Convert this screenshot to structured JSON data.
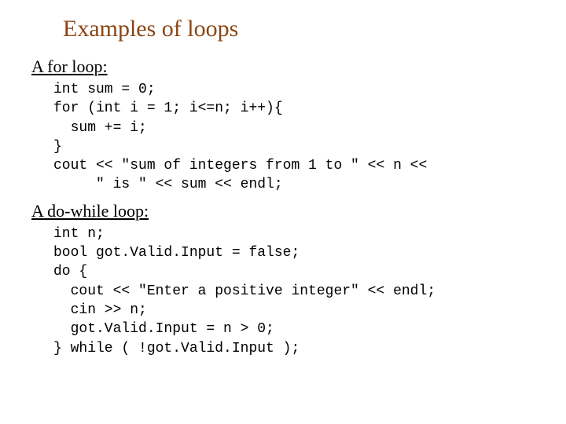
{
  "title": {
    "text": "Examples of loops",
    "color": "#8b4513",
    "fontsize": 30
  },
  "sections": [
    {
      "heading": "A for loop:",
      "heading_fontsize": 22,
      "code_lines": [
        "int sum = 0;",
        "for (int i = 1; i<=n; i++){",
        "  sum += i;",
        "}",
        "cout << \"sum of integers from 1 to \" << n <<",
        "     \" is \" << sum << endl;"
      ],
      "code_fontsize": 18,
      "code_fontfamily": "Courier New"
    },
    {
      "heading": "A do-while loop:",
      "heading_fontsize": 22,
      "code_lines": [
        "int n;",
        "bool got.Valid.Input = false;",
        "do {",
        "  cout << \"Enter a positive integer\" << endl;",
        "  cin >> n;",
        "  got.Valid.Input = n > 0;",
        "} while ( !got.Valid.Input );"
      ],
      "code_fontsize": 18,
      "code_fontfamily": "Courier New"
    }
  ],
  "background_color": "#ffffff",
  "text_color": "#000000"
}
